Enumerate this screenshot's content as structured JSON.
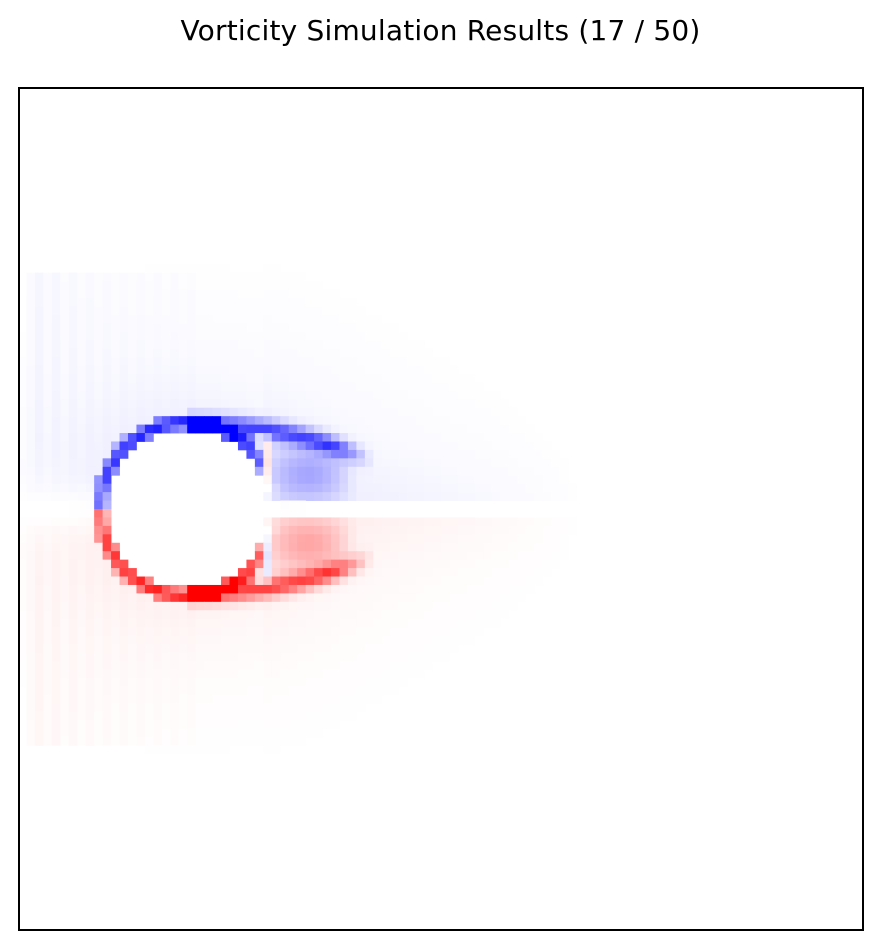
{
  "chart_data": {
    "type": "heatmap",
    "title": "Vorticity Simulation Results (17 / 50)",
    "xlabel": "",
    "ylabel": "",
    "axis_ticks": "none",
    "colormap": {
      "name": "bwr",
      "negative_color": "#0000ff",
      "zero_color": "#ffffff",
      "positive_color": "#ff0000"
    },
    "grid": {
      "cols": 100,
      "rows": 100
    },
    "obstacle": {
      "shape": "circle",
      "center_col": 20,
      "center_row": 50,
      "radius": 10
    },
    "features": {
      "upper_shear_layer_sign": "negative",
      "lower_shear_layer_sign": "positive",
      "recirculation_length": 11,
      "wake_extent_col": 68,
      "peak_abs_vorticity": 1.0
    }
  },
  "colors": {
    "frame": "#000000",
    "background": "#ffffff"
  }
}
